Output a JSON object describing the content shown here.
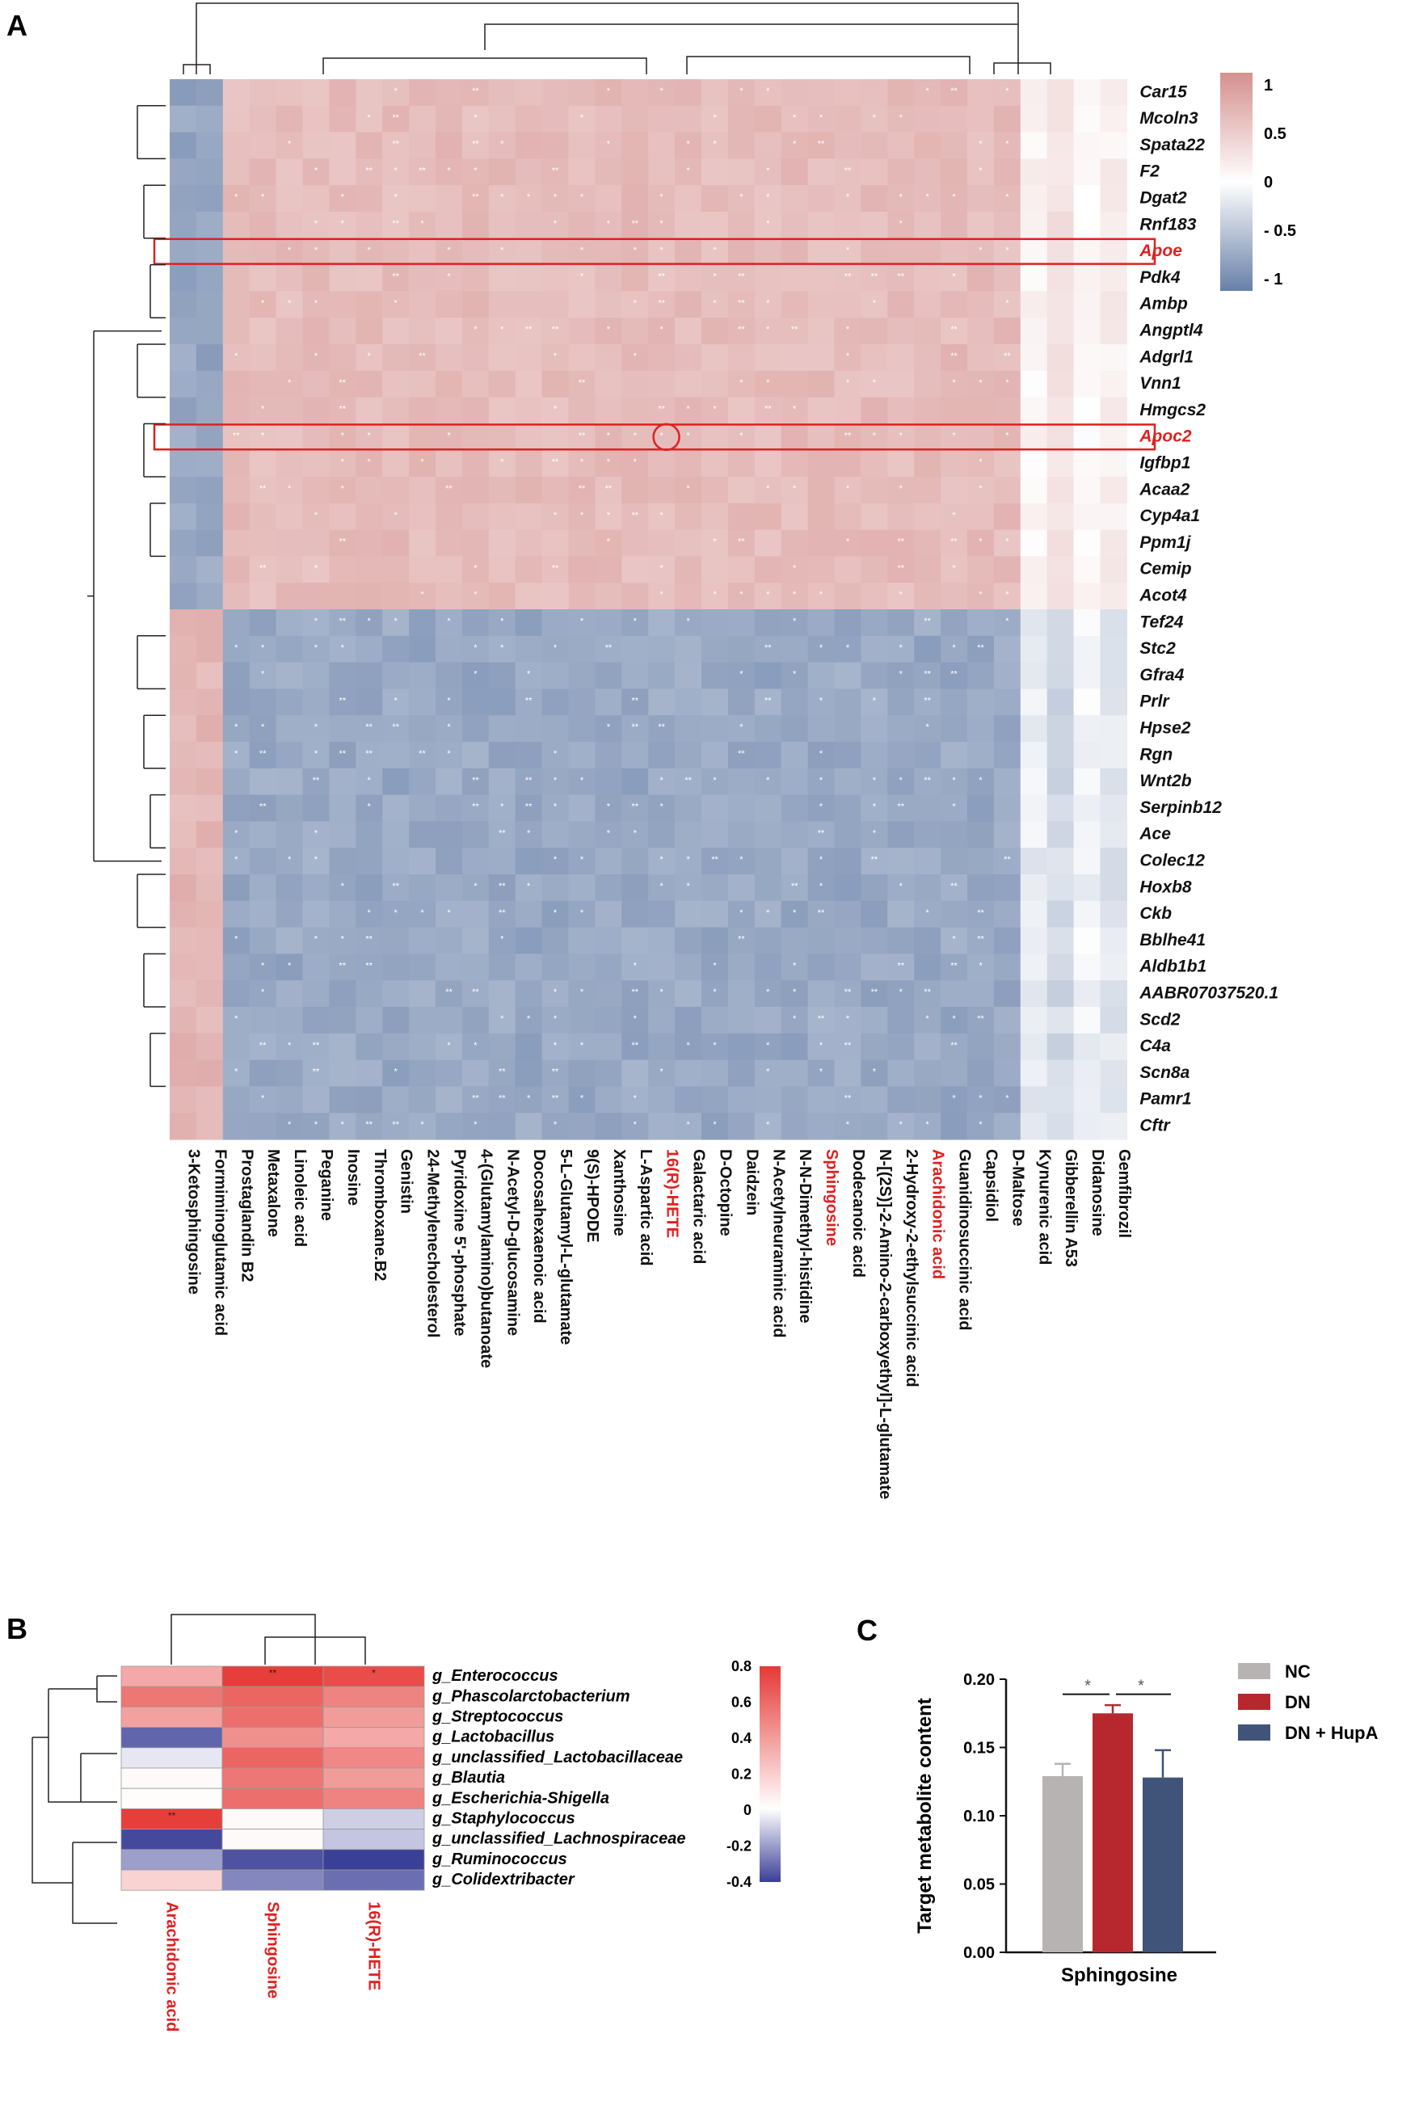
{
  "panels": {
    "a": "A",
    "b": "B",
    "c": "C"
  },
  "colors": {
    "pos": "#d4908e",
    "neg": "#6880a8",
    "mid": "#ffffff",
    "b_pos": "#e53935",
    "b_neg": "#3a3f97",
    "highlight": "#e02020",
    "nc": "#b8b3b3",
    "dn": "#b7282e",
    "hupa": "#3f5478"
  },
  "chart_data": [
    {
      "type": "heatmap",
      "panel": "A",
      "rows": [
        "Car15",
        "Mcoln3",
        "Spata22",
        "F2",
        "Dgat2",
        "Rnf183",
        "Apoe",
        "Pdk4",
        "Ambp",
        "Angptl4",
        "Adgrl1",
        "Vnn1",
        "Hmgcs2",
        "Apoc2",
        "Igfbp1",
        "Acaa2",
        "Cyp4a1",
        "Ppm1j",
        "Cemip",
        "Acot4",
        "Tef24",
        "Stc2",
        "Gfra4",
        "Prlr",
        "Hpse2",
        "Rgn",
        "Wnt2b",
        "Serpinb12",
        "Ace",
        "Colec12",
        "Hoxb8",
        "Ckb",
        "Bblhe41",
        "Aldb1b1",
        "AABR07037520.1",
        "Scd2",
        "C4a",
        "Scn8a",
        "Pamr1",
        "Cftr"
      ],
      "columns": [
        "3-Ketosphingosine",
        "Formiminoglutamic acid",
        "Prostaglandin B2",
        "Metaxalone",
        "Linoleic acid",
        "Peganine",
        "Inosine",
        "Thromboxane.B2",
        "Genistin",
        "24-Methylenecholesterol",
        "Pyridoxine 5'-phosphate",
        "4-(Glutamylamino)butanoate",
        "N-Acetyl-D-glucosamine",
        "Docosahexaenoic acid",
        "5-L-Glutamyl-L-glutamate",
        "9(S)-HPODE",
        "Xanthosine",
        "L-Aspartic acid",
        "16(R)-HETE",
        "Galactaric acid",
        "D-Octopine",
        "Daidzein",
        "N-Acetylneuraminic acid",
        "N-N-Dimethyl-histidine",
        "Sphingosine",
        "Dodecanoic acid",
        "N-[(2S)]-2-Amino-2-carboxyethyl]-L-glutamate",
        "2-Hydroxy-2-ethylsuccinic acid",
        "Arachidonic acid",
        "Guanidinosuccinic acid",
        "Capsidiol",
        "D-Maltose",
        "Kynurenic acid",
        "Gibberellin A53",
        "Didanosine",
        "Gemfibrozil"
      ],
      "highlighted_rows": [
        "Apoe",
        "Apoc2"
      ],
      "highlighted_columns": [
        "16(R)-HETE",
        "Sphingosine",
        "Arachidonic acid"
      ],
      "colorbar": {
        "ticks": [
          "1",
          "0.5",
          "0",
          "- 0.5",
          "- 1"
        ],
        "range": [
          -1,
          1
        ]
      }
    },
    {
      "type": "heatmap",
      "panel": "B",
      "rows": [
        "g_Enterococcus",
        "g_Phascolarctobacterium",
        "g_Streptococcus",
        "g_Lactobacillus",
        "g_unclassified_Lactobacillaceae",
        "g_Blautia",
        "g_Escherichia-Shigella",
        "g_Staphylococcus",
        "g_unclassified_Lachnospiraceae",
        "g_Ruminococcus",
        "g_Colidextribacter"
      ],
      "columns": [
        "Arachidonic acid",
        "Sphingosine",
        "16(R)-HETE"
      ],
      "values": [
        [
          0.35,
          0.78,
          0.72
        ],
        [
          0.55,
          0.62,
          0.5
        ],
        [
          0.38,
          0.58,
          0.4
        ],
        [
          -0.32,
          0.45,
          0.35
        ],
        [
          -0.05,
          0.62,
          0.48
        ],
        [
          0.02,
          0.55,
          0.4
        ],
        [
          0.01,
          0.58,
          0.5
        ],
        [
          0.78,
          0.02,
          -0.1
        ],
        [
          -0.38,
          0.02,
          -0.12
        ],
        [
          -0.2,
          -0.36,
          -0.4
        ],
        [
          0.18,
          -0.25,
          -0.3
        ]
      ],
      "stars": [
        [
          "",
          "**",
          "*"
        ],
        [
          "",
          "",
          ""
        ],
        [
          "",
          "",
          ""
        ],
        [
          "",
          "",
          ""
        ],
        [
          "",
          "",
          ""
        ],
        [
          "",
          "",
          ""
        ],
        [
          "",
          "",
          ""
        ],
        [
          "**",
          "",
          ""
        ],
        [
          "",
          "",
          ""
        ],
        [
          "",
          "",
          ""
        ],
        [
          "",
          "",
          ""
        ]
      ],
      "colorbar": {
        "ticks": [
          "0.8",
          "0.6",
          "0.4",
          "0.2",
          "0",
          "-0.2",
          "-0.4"
        ],
        "range": [
          -0.4,
          0.8
        ]
      }
    },
    {
      "type": "bar",
      "panel": "C",
      "ylabel": "Target  metabolite  content",
      "xlabel": "Sphingosine",
      "ylim": [
        0,
        0.2
      ],
      "yticks": [
        "0.00",
        "0.05",
        "0.10",
        "0.15",
        "0.20"
      ],
      "series": [
        {
          "name": "NC",
          "value": 0.129,
          "error": 0.009
        },
        {
          "name": "DN",
          "value": 0.175,
          "error": 0.006
        },
        {
          "name": "DN + HupA",
          "value": 0.128,
          "error": 0.02
        }
      ],
      "significance": [
        "*",
        "*"
      ]
    }
  ]
}
